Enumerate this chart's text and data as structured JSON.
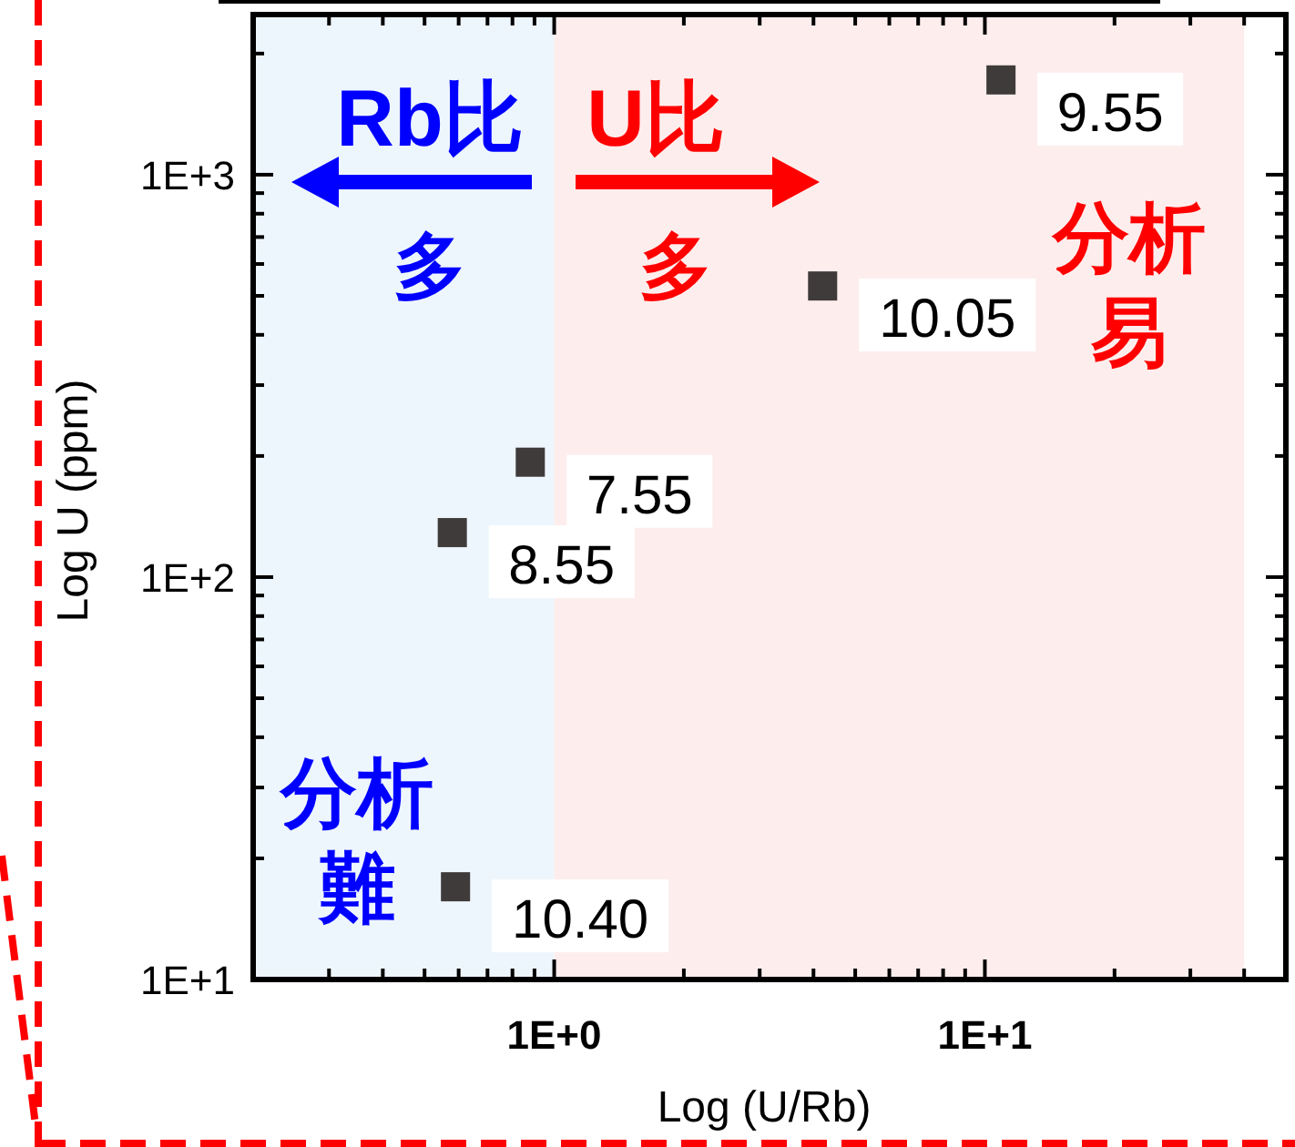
{
  "chart_data": {
    "type": "scatter",
    "xlabel": "Log (U/Rb)",
    "ylabel": "Log U (ppm)",
    "log": "xy",
    "marker": "square",
    "grid": false,
    "xlim": [
      0.2,
      50
    ],
    "xticks": [
      {
        "value": 0.3,
        "label": null
      },
      {
        "value": 0.4,
        "label": null
      },
      {
        "value": 0.5,
        "label": null
      },
      {
        "value": 0.6,
        "label": null
      },
      {
        "value": 0.7,
        "label": null
      },
      {
        "value": 0.8,
        "label": null
      },
      {
        "value": 0.9,
        "label": null
      },
      {
        "value": 1,
        "label": "1E+0"
      },
      {
        "value": 2,
        "label": null
      },
      {
        "value": 3,
        "label": null
      },
      {
        "value": 4,
        "label": null
      },
      {
        "value": 5,
        "label": null
      },
      {
        "value": 6,
        "label": null
      },
      {
        "value": 7,
        "label": null
      },
      {
        "value": 8,
        "label": null
      },
      {
        "value": 9,
        "label": null
      },
      {
        "value": 10,
        "label": "1E+1"
      },
      {
        "value": 20,
        "label": null
      },
      {
        "value": 30,
        "label": null
      },
      {
        "value": 40,
        "label": null
      }
    ],
    "ylim": [
      10,
      2500
    ],
    "yticks": [
      {
        "value": 10,
        "label": "1E+1"
      },
      {
        "value": 20,
        "label": null
      },
      {
        "value": 30,
        "label": null
      },
      {
        "value": 40,
        "label": null
      },
      {
        "value": 50,
        "label": null
      },
      {
        "value": 60,
        "label": null
      },
      {
        "value": 70,
        "label": null
      },
      {
        "value": 80,
        "label": null
      },
      {
        "value": 90,
        "label": null
      },
      {
        "value": 100,
        "label": "1E+2"
      },
      {
        "value": 200,
        "label": null
      },
      {
        "value": 300,
        "label": null
      },
      {
        "value": 400,
        "label": null
      },
      {
        "value": 500,
        "label": null
      },
      {
        "value": 600,
        "label": null
      },
      {
        "value": 700,
        "label": null
      },
      {
        "value": 800,
        "label": null
      },
      {
        "value": 900,
        "label": null
      },
      {
        "value": 1000,
        "label": "1E+3"
      },
      {
        "value": 2000,
        "label": null
      }
    ],
    "bands": [
      {
        "axis": "x",
        "from": 0.2,
        "to": 1,
        "label": "分析難",
        "color": "#eef6fd"
      },
      {
        "axis": "x",
        "from": 1,
        "to": 40,
        "label": "分析易",
        "color": "#fdeeed"
      }
    ],
    "annotations": [
      "Rb比多",
      "U比多",
      {
        "text": "9.55",
        "x": 10.9,
        "y": 1720
      },
      {
        "text": "10.05",
        "x": 4.2,
        "y": 529
      },
      {
        "text": "7.55",
        "x": 0.88,
        "y": 193
      },
      {
        "text": "8.55",
        "x": 0.58,
        "y": 129
      },
      {
        "text": "10.40",
        "x": 0.59,
        "y": 17
      }
    ],
    "series": [
      {
        "color": "#403b3b",
        "x": [
          10.9,
          4.2,
          0.88,
          0.58,
          0.59
        ],
        "values": [
          1720,
          529,
          193,
          129,
          17
        ]
      }
    ]
  }
}
